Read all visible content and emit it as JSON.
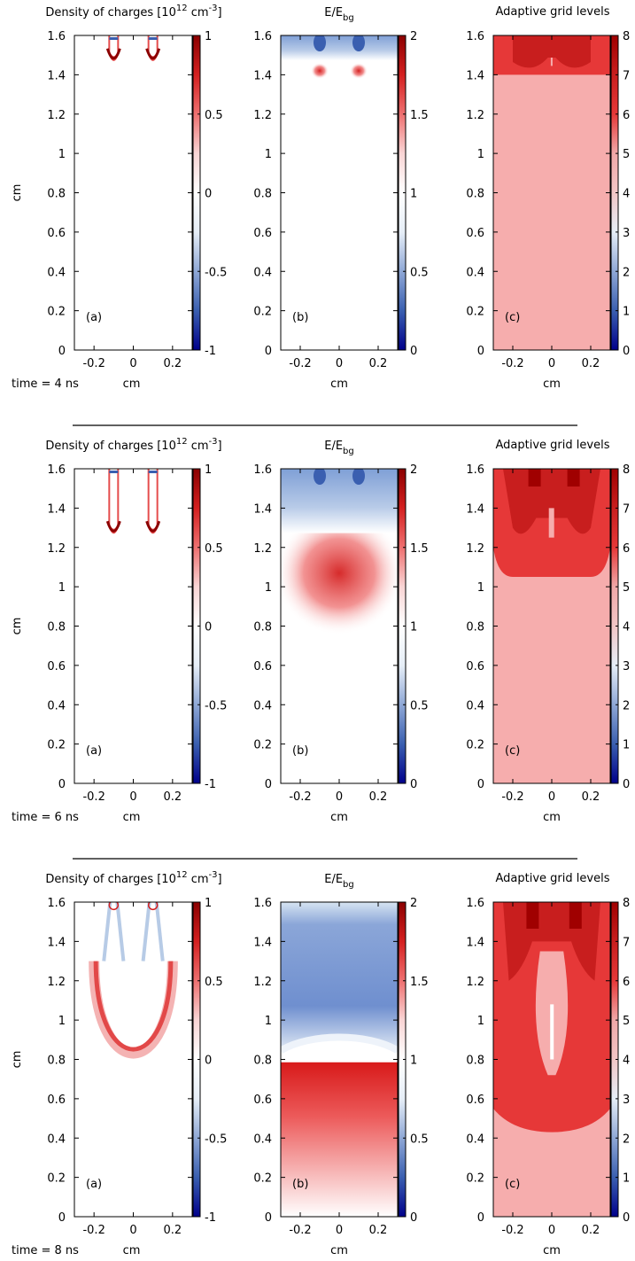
{
  "colors": {
    "colormap": [
      "#00008b",
      "#3a5fb0",
      "#8fa8d6",
      "#e6eef7",
      "#ffffff",
      "#f9d5d5",
      "#ee7070",
      "#d42020",
      "#8b0000"
    ],
    "grid_levels": {
      "5": "#f6adad",
      "6": "#e63838",
      "7": "#c81e1e",
      "8": "#a00000"
    }
  },
  "rows": [
    {
      "time_label": "time = 4 ns"
    },
    {
      "time_label": "time = 6 ns"
    },
    {
      "time_label": "time = 8 ns"
    }
  ],
  "chart_data": [
    {
      "type": "heatmap",
      "panel": "(a)",
      "time": "4 ns",
      "title": "Density of charges [10^12 cm^-3]",
      "xlabel": "cm",
      "ylabel": "cm",
      "xlim": [
        -0.3,
        0.3
      ],
      "ylim": [
        0,
        1.6
      ],
      "xticks": [
        "-0.2",
        "0",
        "0.2"
      ],
      "yticks": [
        "0",
        "0.2",
        "0.4",
        "0.6",
        "0.8",
        "1",
        "1.2",
        "1.4",
        "1.6"
      ],
      "colorbar": {
        "range": [
          -1,
          1
        ],
        "ticks": [
          "-1",
          "-0.5",
          "0",
          "0.5",
          "1"
        ]
      },
      "features": {
        "streamer_heads_x": [
          -0.1,
          0.1
        ],
        "head_y": 1.47,
        "channel_top": 1.6
      }
    },
    {
      "type": "heatmap",
      "panel": "(b)",
      "time": "4 ns",
      "title": "E/E_bg",
      "xlabel": "cm",
      "ylabel": "",
      "xlim": [
        -0.3,
        0.3
      ],
      "ylim": [
        0,
        1.6
      ],
      "xticks": [
        "-0.2",
        "0",
        "0.2"
      ],
      "yticks": [
        "0",
        "0.2",
        "0.4",
        "0.6",
        "0.8",
        "1",
        "1.2",
        "1.4",
        "1.6"
      ],
      "colorbar": {
        "range": [
          0,
          2
        ],
        "ticks": [
          "0",
          "0.5",
          "1",
          "1.5",
          "2"
        ]
      },
      "features": {
        "enhanced_field_y": 1.42,
        "screened_y_min": 1.5
      }
    },
    {
      "type": "heatmap",
      "panel": "(c)",
      "time": "4 ns",
      "title": "Adaptive grid levels",
      "xlabel": "cm",
      "ylabel": "",
      "xlim": [
        -0.3,
        0.3
      ],
      "ylim": [
        0,
        1.6
      ],
      "xticks": [
        "-0.2",
        "0",
        "0.2"
      ],
      "yticks": [
        "0",
        "0.2",
        "0.4",
        "0.6",
        "0.8",
        "1",
        "1.2",
        "1.4",
        "1.6"
      ],
      "colorbar": {
        "range": [
          0,
          8
        ],
        "ticks": [
          "0",
          "1",
          "2",
          "3",
          "4",
          "5",
          "6",
          "7",
          "8"
        ]
      },
      "features": {
        "base_level": 5,
        "level6_y_min": 1.4
      }
    },
    {
      "type": "heatmap",
      "panel": "(a)",
      "time": "6 ns",
      "title": "Density of charges [10^12 cm^-3]",
      "xlabel": "cm",
      "ylabel": "cm",
      "xlim": [
        -0.3,
        0.3
      ],
      "ylim": [
        0,
        1.6
      ],
      "xticks": [
        "-0.2",
        "0",
        "0.2"
      ],
      "yticks": [
        "0",
        "0.2",
        "0.4",
        "0.6",
        "0.8",
        "1",
        "1.2",
        "1.4",
        "1.6"
      ],
      "colorbar": {
        "range": [
          -1,
          1
        ],
        "ticks": [
          "-1",
          "-0.5",
          "0",
          "0.5",
          "1"
        ]
      },
      "features": {
        "streamer_heads_x": [
          -0.1,
          0.1
        ],
        "head_y": 1.27,
        "channel_top": 1.6
      }
    },
    {
      "type": "heatmap",
      "panel": "(b)",
      "time": "6 ns",
      "title": "E/E_bg",
      "xlabel": "cm",
      "ylabel": "",
      "xlim": [
        -0.3,
        0.3
      ],
      "ylim": [
        0,
        1.6
      ],
      "xticks": [
        "-0.2",
        "0",
        "0.2"
      ],
      "yticks": [
        "0",
        "0.2",
        "0.4",
        "0.6",
        "0.8",
        "1",
        "1.2",
        "1.4",
        "1.6"
      ],
      "colorbar": {
        "range": [
          0,
          2
        ],
        "ticks": [
          "0",
          "0.5",
          "1",
          "1.5",
          "2"
        ]
      },
      "features": {
        "enhanced_field_y": 1.25,
        "screened_y_min": 1.3
      }
    },
    {
      "type": "heatmap",
      "panel": "(c)",
      "time": "6 ns",
      "title": "Adaptive grid levels",
      "xlabel": "cm",
      "ylabel": "",
      "xlim": [
        -0.3,
        0.3
      ],
      "ylim": [
        0,
        1.6
      ],
      "xticks": [
        "-0.2",
        "0",
        "0.2"
      ],
      "yticks": [
        "0",
        "0.2",
        "0.4",
        "0.6",
        "0.8",
        "1",
        "1.2",
        "1.4",
        "1.6"
      ],
      "colorbar": {
        "range": [
          0,
          8
        ],
        "ticks": [
          "0",
          "1",
          "2",
          "3",
          "4",
          "5",
          "6",
          "7",
          "8"
        ]
      },
      "features": {
        "base_level": 5,
        "level6_y_min": 1.05
      }
    },
    {
      "type": "heatmap",
      "panel": "(a)",
      "time": "8 ns",
      "title": "Density of charges [10^12 cm^-3]",
      "xlabel": "cm",
      "ylabel": "cm",
      "xlim": [
        -0.3,
        0.3
      ],
      "ylim": [
        0,
        1.6
      ],
      "xticks": [
        "-0.2",
        "0",
        "0.2"
      ],
      "yticks": [
        "0",
        "0.2",
        "0.4",
        "0.6",
        "0.8",
        "1",
        "1.2",
        "1.4",
        "1.6"
      ],
      "colorbar": {
        "range": [
          -1,
          1
        ],
        "ticks": [
          "-1",
          "-0.5",
          "0",
          "0.5",
          "1"
        ]
      },
      "features": {
        "front_y": 0.72,
        "front_halfwidth": 0.2,
        "channel_top": 1.6
      }
    },
    {
      "type": "heatmap",
      "panel": "(b)",
      "time": "8 ns",
      "title": "E/E_bg",
      "xlabel": "cm",
      "ylabel": "",
      "xlim": [
        -0.3,
        0.3
      ],
      "ylim": [
        0,
        1.6
      ],
      "xticks": [
        "-0.2",
        "0",
        "0.2"
      ],
      "yticks": [
        "0",
        "0.2",
        "0.4",
        "0.6",
        "0.8",
        "1",
        "1.2",
        "1.4",
        "1.6"
      ],
      "colorbar": {
        "range": [
          0,
          2
        ],
        "ticks": [
          "0",
          "0.5",
          "1",
          "1.5",
          "2"
        ]
      },
      "features": {
        "enhanced_field_y": 0.65,
        "screened_y_min": 0.8
      }
    },
    {
      "type": "heatmap",
      "panel": "(c)",
      "time": "8 ns",
      "title": "Adaptive grid levels",
      "xlabel": "cm",
      "ylabel": "",
      "xlim": [
        -0.3,
        0.3
      ],
      "ylim": [
        0,
        1.6
      ],
      "xticks": [
        "-0.2",
        "0",
        "0.2"
      ],
      "yticks": [
        "0",
        "0.2",
        "0.4",
        "0.6",
        "0.8",
        "1",
        "1.2",
        "1.4",
        "1.6"
      ],
      "colorbar": {
        "range": [
          0,
          8
        ],
        "ticks": [
          "0",
          "1",
          "2",
          "3",
          "4",
          "5",
          "6",
          "7",
          "8"
        ]
      },
      "features": {
        "base_level": 5,
        "level6_y_min": 0.43
      }
    }
  ]
}
